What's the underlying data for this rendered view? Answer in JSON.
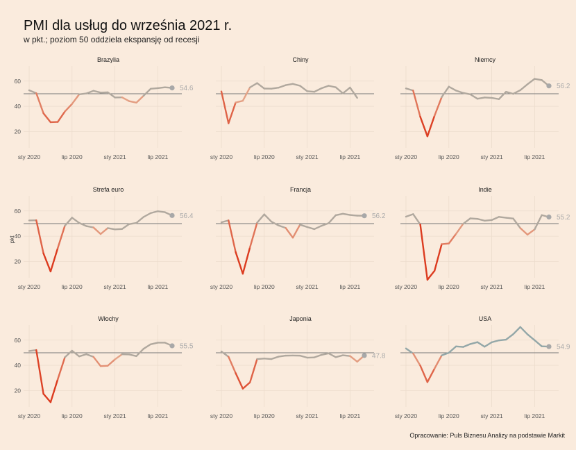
{
  "title": "PMI dla usług do września 2021 r.",
  "subtitle": "w pkt.; poziom 50 oddziela ekspansję od recesji",
  "caption": "Opracowanie: Puls Biznesu Analizy na podstawie Markit",
  "colors": {
    "background": "#faebdd",
    "neutral_line": "#b0a89e",
    "teal_line": "#93a7a8",
    "recession_light": "#e4a488",
    "recession_dark": "#dc3b1f",
    "reference_line": "#777777",
    "grid": "#ecdccd",
    "end_point": "#a8a8a8"
  },
  "chart_data": {
    "type": "line",
    "y_axis_label": "pkt",
    "xticks": [
      "sty 2020",
      "lip 2020",
      "sty 2021",
      "lip 2021"
    ],
    "x_dates": [
      "2020-01",
      "2020-02",
      "2020-03",
      "2020-04",
      "2020-05",
      "2020-06",
      "2020-07",
      "2020-08",
      "2020-09",
      "2020-10",
      "2020-11",
      "2020-12",
      "2021-01",
      "2021-02",
      "2021-03",
      "2021-04",
      "2021-05",
      "2021-06",
      "2021-07",
      "2021-08",
      "2021-09"
    ],
    "ylim": [
      7,
      72
    ],
    "yticks": [
      20,
      40,
      60
    ],
    "reference_level": 50,
    "panels": [
      {
        "name": "Brazylia",
        "end_label": "54.6",
        "values": [
          52.7,
          50.4,
          34.5,
          27.4,
          27.6,
          35.9,
          41.9,
          49.5,
          50.2,
          52.3,
          50.9,
          51.1,
          47.0,
          47.1,
          44.1,
          42.9,
          48.3,
          53.9,
          54.4,
          55.1,
          54.6
        ]
      },
      {
        "name": "Chiny",
        "end_label": "",
        "values": [
          51.8,
          26.5,
          43.0,
          44.4,
          55.0,
          58.4,
          54.1,
          54.0,
          54.8,
          56.8,
          57.8,
          56.3,
          52.0,
          51.5,
          54.3,
          56.3,
          55.1,
          50.3,
          54.9,
          46.7,
          null
        ]
      },
      {
        "name": "Niemcy",
        "end_label": "56.2",
        "values": [
          54.2,
          52.5,
          31.7,
          16.2,
          32.6,
          47.3,
          55.6,
          52.5,
          50.6,
          49.5,
          46.0,
          47.0,
          46.7,
          45.7,
          51.5,
          49.9,
          52.8,
          57.5,
          61.8,
          60.8,
          56.2
        ]
      },
      {
        "name": "Strefa euro",
        "end_label": "56.4",
        "values": [
          52.5,
          52.6,
          26.4,
          12.0,
          30.5,
          48.3,
          54.7,
          50.5,
          48.0,
          46.9,
          41.7,
          46.4,
          45.4,
          45.7,
          49.6,
          50.5,
          55.2,
          58.3,
          59.8,
          59.0,
          56.4
        ]
      },
      {
        "name": "Francja",
        "end_label": "56.2",
        "values": [
          51.0,
          52.5,
          27.4,
          10.2,
          31.1,
          50.7,
          57.3,
          51.5,
          48.5,
          46.5,
          38.8,
          49.1,
          47.3,
          45.6,
          48.2,
          50.3,
          56.6,
          57.8,
          56.8,
          56.3,
          56.2
        ]
      },
      {
        "name": "Indie",
        "end_label": "55.2",
        "values": [
          55.5,
          57.5,
          49.3,
          5.4,
          12.6,
          33.7,
          34.2,
          41.8,
          49.8,
          54.1,
          53.7,
          52.3,
          52.8,
          55.3,
          54.6,
          54.0,
          46.4,
          41.2,
          45.4,
          56.7,
          55.2
        ]
      },
      {
        "name": "Włochy",
        "end_label": "55.5",
        "values": [
          51.4,
          52.1,
          17.4,
          10.8,
          28.9,
          46.4,
          51.6,
          47.1,
          48.8,
          46.7,
          39.4,
          39.7,
          44.7,
          48.8,
          48.6,
          47.3,
          53.1,
          56.7,
          58.0,
          58.0,
          55.5
        ]
      },
      {
        "name": "Japonia",
        "end_label": "47.8",
        "values": [
          51.0,
          46.8,
          33.8,
          21.5,
          26.5,
          45.0,
          45.4,
          45.0,
          46.9,
          47.7,
          47.8,
          47.7,
          46.1,
          46.3,
          48.3,
          49.5,
          46.5,
          48.0,
          47.4,
          42.9,
          47.8
        ]
      },
      {
        "name": "USA",
        "end_label": "54.9",
        "values": [
          53.4,
          49.4,
          39.8,
          26.7,
          37.5,
          47.9,
          50.0,
          55.0,
          54.6,
          56.9,
          58.4,
          54.8,
          58.3,
          59.8,
          60.4,
          64.7,
          70.4,
          64.6,
          59.9,
          55.1,
          54.9
        ]
      }
    ]
  }
}
